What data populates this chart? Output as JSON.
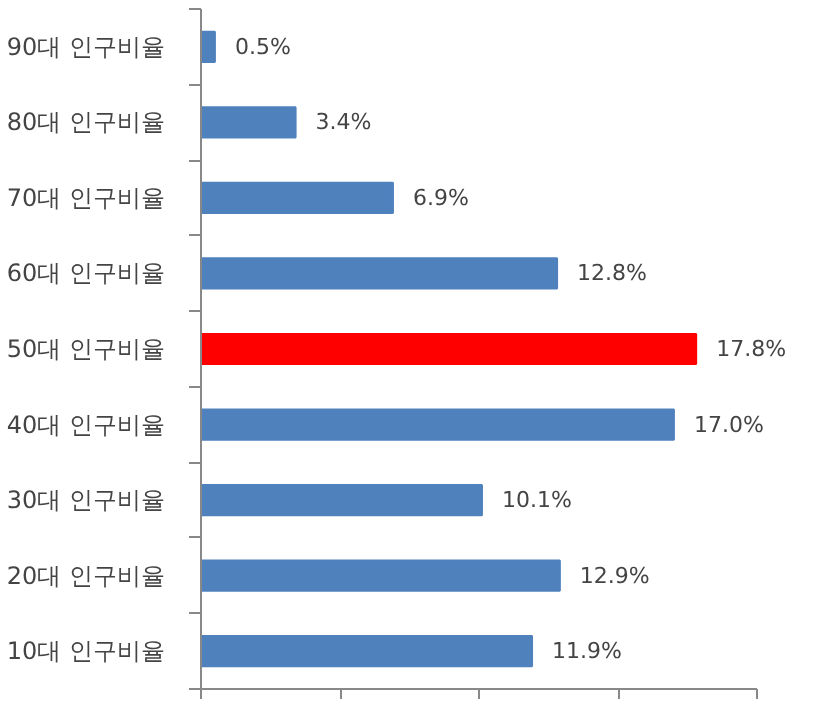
{
  "chart_data": {
    "type": "bar",
    "orientation": "horizontal",
    "categories": [
      "90대 인구비율",
      "80대 인구비율",
      "70대 인구비율",
      "60대 인구비율",
      "50대 인구비율",
      "40대 인구비율",
      "30대 인구비율",
      "20대 인구비율",
      "10대 인구비율"
    ],
    "values": [
      0.5,
      3.4,
      6.9,
      12.8,
      17.8,
      17.0,
      10.1,
      12.9,
      11.9
    ],
    "colors": [
      "#4f81bd",
      "#4f81bd",
      "#4f81bd",
      "#4f81bd",
      "#ff0000",
      "#4f81bd",
      "#4f81bd",
      "#4f81bd",
      "#4f81bd"
    ],
    "value_labels": [
      "0.5%",
      "3.4%",
      "6.9%",
      "12.8%",
      "17.8%",
      "17.0%",
      "10.1%",
      "12.9%",
      "11.9%"
    ],
    "xlim": [
      0,
      20
    ],
    "xticks": [
      {
        "value": 0,
        "label": null
      },
      {
        "value": 5,
        "label": null
      },
      {
        "value": 10,
        "label": null
      },
      {
        "value": 15,
        "label": null
      },
      {
        "value": 20,
        "label": null
      }
    ],
    "grid": false
  }
}
